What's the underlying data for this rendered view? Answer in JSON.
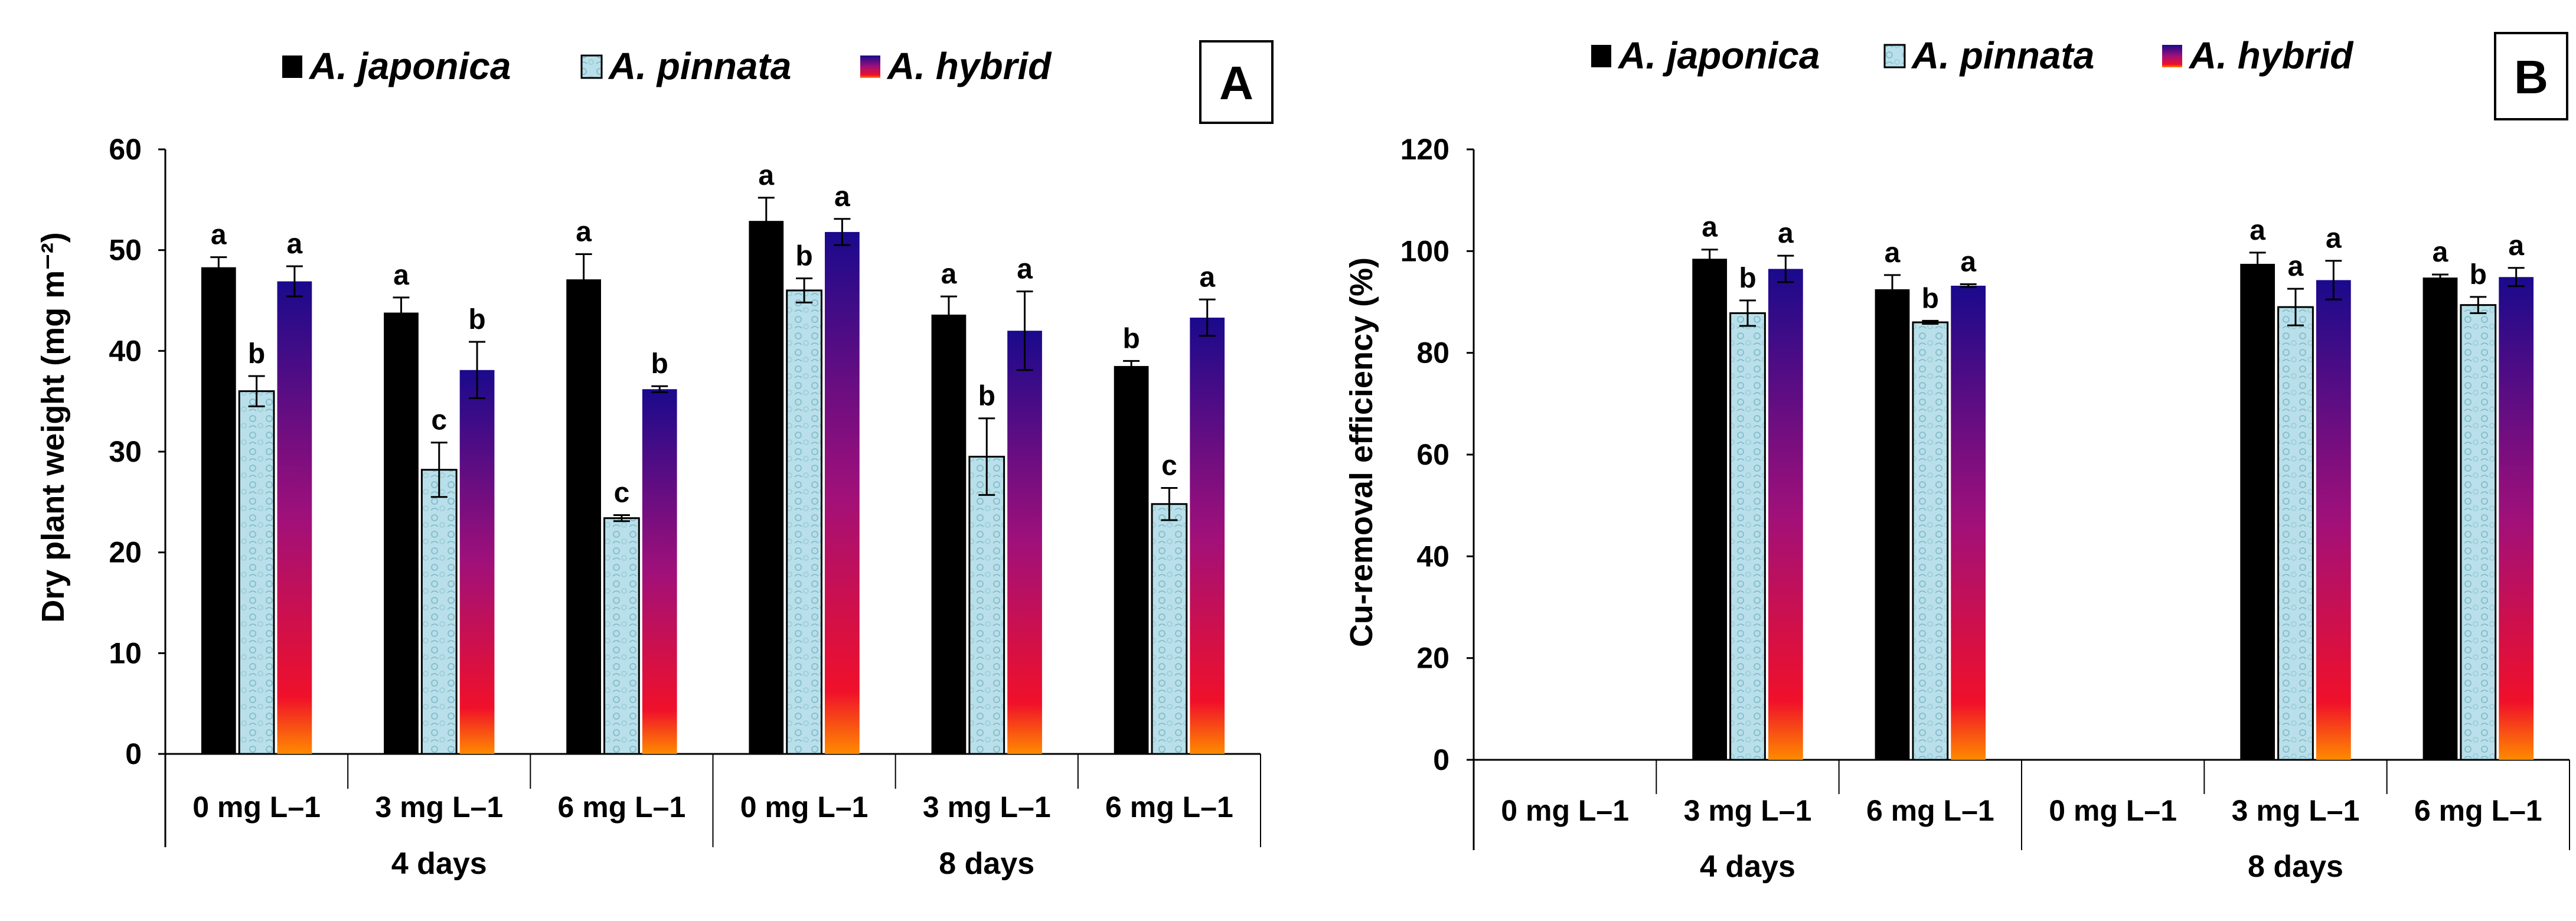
{
  "colors": {
    "japonica": "#000000",
    "pinnata": "#b9e0ea",
    "hybrid_top": "#1a0a8c",
    "hybrid_mid": "#a0107a",
    "hybrid_low": "#f0102a",
    "hybrid_bottom": "#ff8a00"
  },
  "chart_data": [
    {
      "type": "bar",
      "panel": "A",
      "ylabel": "Dry plant weight (mg m⁻²)",
      "ylim": [
        0,
        60
      ],
      "yticks": [
        0,
        10,
        20,
        30,
        40,
        50,
        60
      ],
      "categories": [
        "0 mg L–1",
        "3 mg L–1",
        "6 mg L–1",
        "0 mg L–1",
        "3 mg L–1",
        "6 mg L–1"
      ],
      "groups": [
        {
          "label": "4 days",
          "span": [
            0,
            2
          ]
        },
        {
          "label": "8 days",
          "span": [
            3,
            5
          ]
        }
      ],
      "series": [
        {
          "name": "A. japonica",
          "values": [
            48.3,
            43.8,
            47.1,
            52.9,
            43.6,
            38.5
          ],
          "errors": [
            1.0,
            1.5,
            2.5,
            2.3,
            1.8,
            0.5
          ],
          "letters": [
            "a",
            "a",
            "a",
            "a",
            "a",
            "b"
          ]
        },
        {
          "name": "A. pinnata",
          "values": [
            36.0,
            28.2,
            23.4,
            46.0,
            29.5,
            24.8
          ],
          "errors": [
            1.5,
            2.7,
            0.3,
            1.2,
            3.8,
            1.6
          ],
          "letters": [
            "b",
            "c",
            "c",
            "b",
            "b",
            "c"
          ]
        },
        {
          "name": "A. hybrid",
          "values": [
            46.9,
            38.1,
            36.2,
            51.8,
            42.0,
            43.3
          ],
          "errors": [
            1.5,
            2.8,
            0.3,
            1.3,
            3.9,
            1.8
          ],
          "letters": [
            "a",
            "b",
            "b",
            "a",
            "a",
            "a"
          ]
        }
      ]
    },
    {
      "type": "bar",
      "panel": "B",
      "ylabel": "Cu-removal efficiency (%)",
      "ylim": [
        0,
        120
      ],
      "yticks": [
        0,
        20,
        40,
        60,
        80,
        100,
        120
      ],
      "categories": [
        "0 mg L–1",
        "3 mg L–1",
        "6 mg L–1",
        "0 mg L–1",
        "3 mg L–1",
        "6 mg L–1"
      ],
      "groups": [
        {
          "label": "4 days",
          "span": [
            0,
            2
          ]
        },
        {
          "label": "8 days",
          "span": [
            3,
            5
          ]
        }
      ],
      "series": [
        {
          "name": "A. japonica",
          "values": [
            null,
            98.5,
            92.5,
            null,
            97.5,
            94.8
          ],
          "errors": [
            null,
            1.8,
            2.8,
            null,
            2.2,
            0.6
          ],
          "letters": [
            null,
            "a",
            "a",
            null,
            "a",
            "a"
          ]
        },
        {
          "name": "A. pinnata",
          "values": [
            null,
            87.8,
            86.0,
            null,
            89.0,
            89.4
          ],
          "errors": [
            null,
            2.5,
            0.3,
            null,
            3.6,
            1.6
          ],
          "letters": [
            null,
            "b",
            "b",
            null,
            "a",
            "b"
          ]
        },
        {
          "name": "A. hybrid",
          "values": [
            null,
            96.5,
            93.2,
            null,
            94.3,
            94.9
          ],
          "errors": [
            null,
            2.6,
            0.3,
            null,
            3.8,
            1.8
          ],
          "letters": [
            null,
            "a",
            "a",
            null,
            "a",
            "a"
          ]
        }
      ]
    }
  ]
}
